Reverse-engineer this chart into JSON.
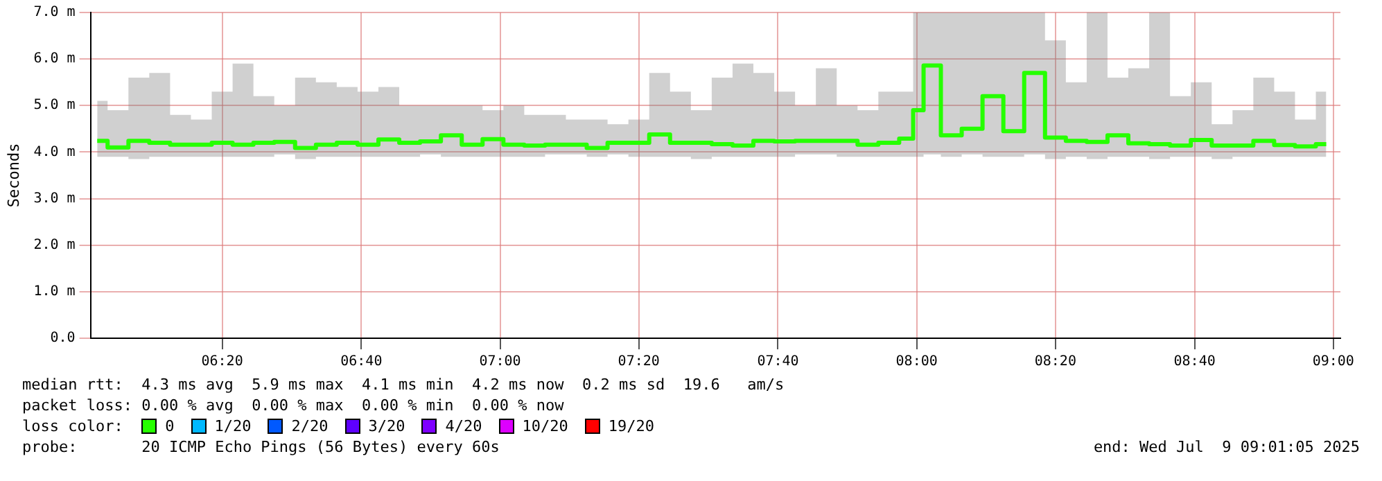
{
  "chart_data": {
    "type": "step",
    "ylabel": "Seconds",
    "legend_title": "loss color:",
    "legend": "bottom",
    "grid": true,
    "xlim": [
      6.017,
      9.017
    ],
    "xticks": [
      {
        "value": 6.333,
        "label": "06:20"
      },
      {
        "value": 6.667,
        "label": "06:40"
      },
      {
        "value": 7,
        "label": "07:00"
      },
      {
        "value": 7.333,
        "label": "07:20"
      },
      {
        "value": 7.667,
        "label": "07:40"
      },
      {
        "value": 8,
        "label": "08:00"
      },
      {
        "value": 8.333,
        "label": "08:20"
      },
      {
        "value": 8.667,
        "label": "08:40"
      },
      {
        "value": 9,
        "label": "09:00"
      }
    ],
    "ylim": [
      0,
      7
    ],
    "yticks": [
      {
        "value": 0,
        "label": "0.0"
      },
      {
        "value": 1,
        "label": "1.0 m"
      },
      {
        "value": 2,
        "label": "2.0 m"
      },
      {
        "value": 3,
        "label": "3.0 m"
      },
      {
        "value": 4,
        "label": "4.0 m"
      },
      {
        "value": 5,
        "label": "5.0 m"
      },
      {
        "value": 6,
        "label": "6.0 m"
      },
      {
        "value": 7,
        "label": "7.0 m"
      }
    ],
    "x": [
      6.033,
      6.083,
      6.133,
      6.183,
      6.233,
      6.283,
      6.333,
      6.383,
      6.433,
      6.483,
      6.533,
      6.583,
      6.633,
      6.683,
      6.733,
      6.783,
      6.833,
      6.883,
      6.933,
      6.983,
      7.033,
      7.083,
      7.133,
      7.183,
      7.233,
      7.283,
      7.333,
      7.383,
      7.433,
      7.483,
      7.533,
      7.583,
      7.633,
      7.683,
      7.733,
      7.783,
      7.833,
      7.883,
      7.933,
      7.983,
      8.0,
      8.033,
      8.083,
      8.133,
      8.183,
      8.233,
      8.283,
      8.333,
      8.383,
      8.433,
      8.483,
      8.533,
      8.583,
      8.633,
      8.683,
      8.733,
      8.783,
      8.833,
      8.883,
      8.933,
      8.983
    ],
    "series": [
      {
        "name": "0",
        "color": "#26ff00",
        "values": [
          4.24,
          4.1,
          4.24,
          4.2,
          4.16,
          4.16,
          4.2,
          4.16,
          4.2,
          4.22,
          4.09,
          4.16,
          4.2,
          4.16,
          4.27,
          4.2,
          4.23,
          4.36,
          4.16,
          4.28,
          4.16,
          4.14,
          4.16,
          4.16,
          4.09,
          4.2,
          4.2,
          4.38,
          4.2,
          4.2,
          4.17,
          4.14,
          4.24,
          4.23,
          4.24,
          4.24,
          4.24,
          4.16,
          4.2,
          4.29,
          4.9,
          5.86,
          4.36,
          4.5,
          5.2,
          4.45,
          5.7,
          4.31,
          4.24,
          4.22,
          4.36,
          4.19,
          4.17,
          4.14,
          4.26,
          4.14,
          4.14,
          4.24,
          4.15,
          4.12,
          4.17
        ],
        "lower": [
          3.9,
          3.9,
          3.85,
          3.9,
          3.9,
          3.9,
          3.9,
          3.9,
          3.9,
          3.95,
          3.85,
          3.9,
          3.9,
          3.9,
          3.9,
          3.9,
          3.95,
          3.9,
          3.9,
          3.9,
          3.9,
          3.9,
          3.95,
          3.95,
          3.9,
          3.95,
          3.9,
          3.9,
          3.9,
          3.85,
          3.9,
          3.9,
          3.9,
          3.9,
          3.95,
          3.95,
          3.9,
          3.9,
          3.9,
          3.9,
          3.9,
          3.95,
          3.9,
          3.95,
          3.9,
          3.9,
          3.95,
          3.85,
          3.9,
          3.85,
          3.9,
          3.9,
          3.85,
          3.9,
          3.9,
          3.85,
          3.9,
          3.9,
          3.9,
          3.9,
          3.9
        ],
        "upper": [
          5.1,
          4.9,
          5.6,
          5.7,
          4.8,
          4.7,
          5.3,
          5.9,
          5.2,
          5.0,
          5.6,
          5.5,
          5.4,
          5.3,
          5.4,
          5.0,
          5.0,
          5.0,
          5.0,
          4.9,
          5.0,
          4.8,
          4.8,
          4.7,
          4.7,
          4.6,
          4.7,
          5.7,
          5.3,
          4.9,
          5.6,
          5.9,
          5.7,
          5.3,
          5.0,
          5.8,
          5.0,
          4.9,
          5.3,
          5.3,
          7.0,
          7.0,
          7.0,
          7.0,
          7.0,
          7.0,
          7.0,
          6.4,
          5.5,
          7.0,
          5.6,
          5.8,
          7.0,
          5.2,
          5.5,
          4.6,
          4.9,
          5.6,
          5.3,
          4.7,
          5.3
        ]
      },
      {
        "name": "1/20",
        "color": "#00b8ff",
        "values": [
          null,
          null,
          null,
          null,
          null,
          null,
          null,
          null,
          null,
          null,
          null,
          null,
          null,
          null,
          null,
          null,
          null,
          null,
          null,
          null,
          null,
          null,
          null,
          null,
          null,
          null,
          null,
          null,
          null,
          null,
          null,
          null,
          null,
          null,
          null,
          null,
          null,
          null,
          null,
          null,
          null,
          null,
          null,
          null,
          null,
          null,
          null,
          null,
          null,
          null,
          null,
          null,
          null,
          null,
          null,
          null,
          null,
          null,
          null,
          null,
          null
        ]
      },
      {
        "name": "2/20",
        "color": "#0059ff",
        "values": [
          null,
          null,
          null,
          null,
          null,
          null,
          null,
          null,
          null,
          null,
          null,
          null,
          null,
          null,
          null,
          null,
          null,
          null,
          null,
          null,
          null,
          null,
          null,
          null,
          null,
          null,
          null,
          null,
          null,
          null,
          null,
          null,
          null,
          null,
          null,
          null,
          null,
          null,
          null,
          null,
          null,
          null,
          null,
          null,
          null,
          null,
          null,
          null,
          null,
          null,
          null,
          null,
          null,
          null,
          null,
          null,
          null,
          null,
          null,
          null,
          null
        ]
      },
      {
        "name": "3/20",
        "color": "#5e00ff",
        "values": [
          null,
          null,
          null,
          null,
          null,
          null,
          null,
          null,
          null,
          null,
          null,
          null,
          null,
          null,
          null,
          null,
          null,
          null,
          null,
          null,
          null,
          null,
          null,
          null,
          null,
          null,
          null,
          null,
          null,
          null,
          null,
          null,
          null,
          null,
          null,
          null,
          null,
          null,
          null,
          null,
          null,
          null,
          null,
          null,
          null,
          null,
          null,
          null,
          null,
          null,
          null,
          null,
          null,
          null,
          null,
          null,
          null,
          null,
          null,
          null,
          null
        ]
      },
      {
        "name": "4/20",
        "color": "#7e00ff",
        "values": [
          null,
          null,
          null,
          null,
          null,
          null,
          null,
          null,
          null,
          null,
          null,
          null,
          null,
          null,
          null,
          null,
          null,
          null,
          null,
          null,
          null,
          null,
          null,
          null,
          null,
          null,
          null,
          null,
          null,
          null,
          null,
          null,
          null,
          null,
          null,
          null,
          null,
          null,
          null,
          null,
          null,
          null,
          null,
          null,
          null,
          null,
          null,
          null,
          null,
          null,
          null,
          null,
          null,
          null,
          null,
          null,
          null,
          null,
          null,
          null,
          null
        ]
      },
      {
        "name": "10/20",
        "color": "#dd00ff",
        "values": [
          null,
          null,
          null,
          null,
          null,
          null,
          null,
          null,
          null,
          null,
          null,
          null,
          null,
          null,
          null,
          null,
          null,
          null,
          null,
          null,
          null,
          null,
          null,
          null,
          null,
          null,
          null,
          null,
          null,
          null,
          null,
          null,
          null,
          null,
          null,
          null,
          null,
          null,
          null,
          null,
          null,
          null,
          null,
          null,
          null,
          null,
          null,
          null,
          null,
          null,
          null,
          null,
          null,
          null,
          null,
          null,
          null,
          null,
          null,
          null,
          null
        ]
      },
      {
        "name": "19/20",
        "color": "#ff0000",
        "values": [
          null,
          null,
          null,
          null,
          null,
          null,
          null,
          null,
          null,
          null,
          null,
          null,
          null,
          null,
          null,
          null,
          null,
          null,
          null,
          null,
          null,
          null,
          null,
          null,
          null,
          null,
          null,
          null,
          null,
          null,
          null,
          null,
          null,
          null,
          null,
          null,
          null,
          null,
          null,
          null,
          null,
          null,
          null,
          null,
          null,
          null,
          null,
          null,
          null,
          null,
          null,
          null,
          null,
          null,
          null,
          null,
          null,
          null,
          null,
          null,
          null
        ]
      }
    ],
    "annotations": [
      "median rtt:  4.3 ms avg  5.9 ms max  4.1 ms min  4.2 ms now  0.2 ms sd  19.6   am/s",
      "packet loss: 0.00 % avg  0.00 % max  0.00 % min  0.00 % now",
      "probe:       20 ICMP Echo Pings (56 Bytes) every 60s",
      "end: Wed Jul  9 09:01:05 2025"
    ]
  }
}
